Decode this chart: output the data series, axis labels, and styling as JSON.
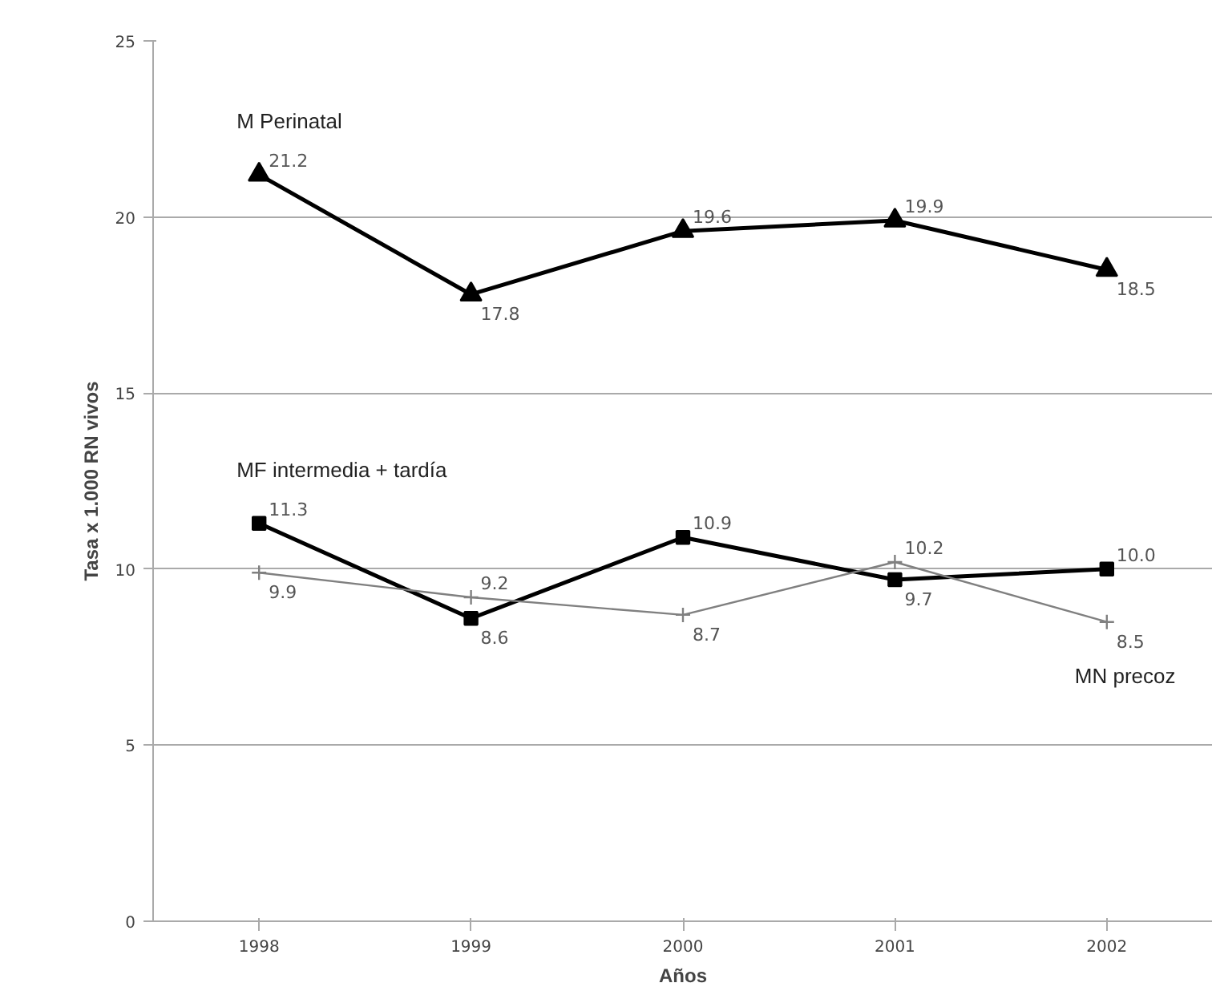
{
  "chart_data": {
    "type": "line",
    "xlabel": "Años",
    "ylabel": "Tasa x 1.000 RN vivos",
    "categories": [
      "1998",
      "1999",
      "2000",
      "2001",
      "2002"
    ],
    "series": [
      {
        "name": "M Perinatal",
        "color": "#000000",
        "marker": "triangle",
        "values": [
          21.2,
          17.8,
          19.6,
          19.9,
          18.5
        ]
      },
      {
        "name": "MF intermedia + tardía",
        "color": "#000000",
        "marker": "square",
        "values": [
          11.3,
          8.6,
          10.9,
          9.7,
          10.0
        ],
        "value_labels": [
          "11.3",
          "8.6",
          "10.9",
          "9.7",
          "10.0"
        ]
      },
      {
        "name": "MN precoz",
        "color": "#808080",
        "marker": "cross",
        "values": [
          9.9,
          9.2,
          8.7,
          10.2,
          8.5
        ]
      }
    ],
    "ylim": [
      0,
      25
    ],
    "yticks": [
      0,
      5,
      10,
      15,
      20,
      25
    ],
    "grid": "y",
    "data_labels": true,
    "line_style": "solid"
  }
}
